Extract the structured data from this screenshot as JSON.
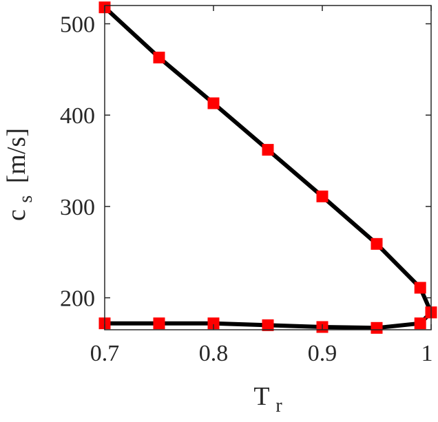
{
  "chart_data": {
    "type": "line",
    "title": "",
    "xlabel": {
      "main": "T",
      "sub": "r"
    },
    "ylabel": {
      "main": "c",
      "sub": "s",
      "unit": "[m/s]"
    },
    "xlim": [
      0.7,
      1.0
    ],
    "ylim": [
      165,
      520
    ],
    "xticks": [
      0.7,
      0.8,
      0.9,
      1.0
    ],
    "xtick_labels": [
      "0.7",
      "0.8",
      "0.9",
      "1"
    ],
    "yticks": [
      200,
      300,
      400,
      500
    ],
    "ytick_labels": [
      "200",
      "300",
      "400",
      "500"
    ],
    "grid": false,
    "legend": "none",
    "line_color": "#000000",
    "marker_color": "#ff0000",
    "marker": "square",
    "series": [
      {
        "x": [
          0.7,
          0.75,
          0.8,
          0.85,
          0.9,
          0.95,
          0.99,
          1.0
        ],
        "y": [
          518,
          463,
          413,
          362,
          311,
          259,
          211,
          184
        ]
      },
      {
        "x": [
          0.7,
          0.75,
          0.8,
          0.85,
          0.9,
          0.95,
          0.99,
          1.0
        ],
        "y": [
          172,
          172,
          172,
          170,
          168,
          167,
          172,
          184
        ]
      }
    ]
  }
}
